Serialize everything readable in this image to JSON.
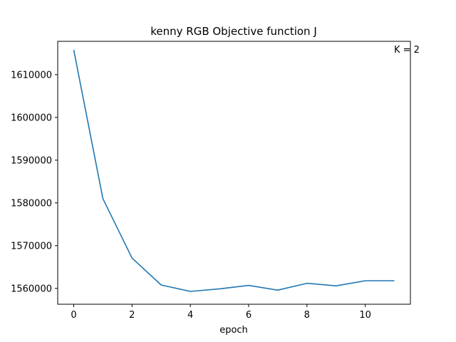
{
  "chart_data": {
    "type": "line",
    "title": "kenny RGB Objective function J",
    "xlabel": "epoch",
    "ylabel": "",
    "annotation": "K = 2",
    "grid": false,
    "xlim": [
      -0.55,
      11.55
    ],
    "ylim": [
      1556300,
      1617800
    ],
    "x_ticks": [
      0,
      2,
      4,
      6,
      8,
      10
    ],
    "y_ticks": [
      1560000,
      1570000,
      1580000,
      1590000,
      1600000,
      1610000
    ],
    "series": [
      {
        "color": "#1f77b4",
        "x": [
          0,
          1,
          2,
          3,
          4,
          5,
          6,
          7,
          8,
          9,
          10,
          11
        ],
        "y": [
          1615800,
          1581000,
          1567100,
          1560800,
          1559300,
          1559900,
          1560700,
          1559600,
          1561200,
          1560600,
          1561800,
          1561800
        ]
      }
    ]
  }
}
